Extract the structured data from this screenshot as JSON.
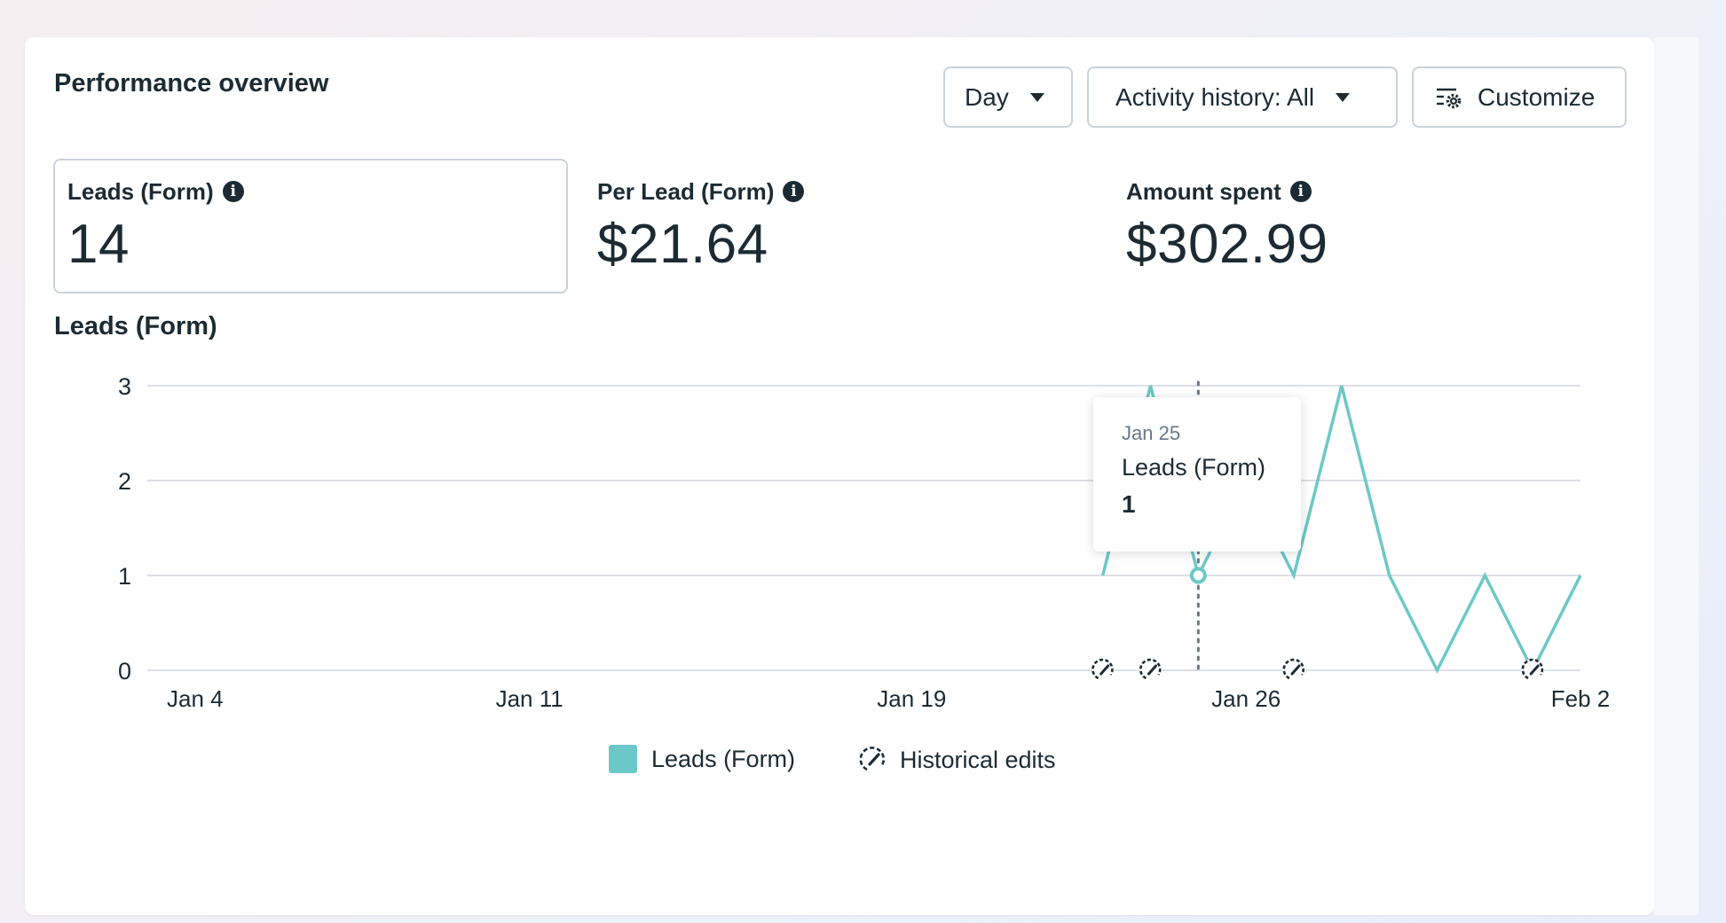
{
  "header": {
    "title": "Performance overview",
    "day_label": "Day",
    "activity_label": "Activity history: All",
    "customize_label": "Customize"
  },
  "metrics": [
    {
      "label": "Leads (Form)",
      "value": "14",
      "selected": true
    },
    {
      "label": "Per Lead (Form)",
      "value": "$21.64",
      "selected": false
    },
    {
      "label": "Amount spent",
      "value": "$302.99",
      "selected": false
    }
  ],
  "tooltip": {
    "date": "Jan 25",
    "label": "Leads (Form)",
    "value": "1"
  },
  "legend": {
    "leads": "Leads (Form)",
    "edits": "Historical edits"
  },
  "colors": {
    "series": "#6cc8c8",
    "text": "#1c2b33",
    "grid": "#dcdfe4",
    "border": "#cbd2d9"
  },
  "chart_data": {
    "type": "line",
    "title": "Leads (Form)",
    "xlabel": "",
    "ylabel": "",
    "ylim": [
      0,
      3
    ],
    "yticks": [
      "0",
      "1",
      "2",
      "3"
    ],
    "x_tick_labels": [
      {
        "date": "2024-01-04",
        "label": "Jan 4"
      },
      {
        "date": "2024-01-11",
        "label": "Jan 11"
      },
      {
        "date": "2024-01-19",
        "label": "Jan 19"
      },
      {
        "date": "2024-01-26",
        "label": "Jan 26"
      },
      {
        "date": "2024-02-02",
        "label": "Feb 2"
      }
    ],
    "series": [
      {
        "name": "Leads (Form)",
        "x": [
          "2024-01-23",
          "2024-01-24",
          "2024-01-25",
          "2024-01-26",
          "2024-01-27",
          "2024-01-28",
          "2024-01-29",
          "2024-01-30",
          "2024-01-31",
          "2024-02-01",
          "2024-02-02"
        ],
        "y": [
          1,
          3,
          1,
          2,
          1,
          3,
          1,
          0,
          1,
          0,
          1
        ]
      }
    ],
    "historical_edits": [
      "2024-01-23",
      "2024-01-24",
      "2024-01-27",
      "2024-02-01"
    ],
    "highlight": {
      "date": "2024-01-25",
      "value": 1
    },
    "grid": true,
    "legend_position": "bottom"
  }
}
